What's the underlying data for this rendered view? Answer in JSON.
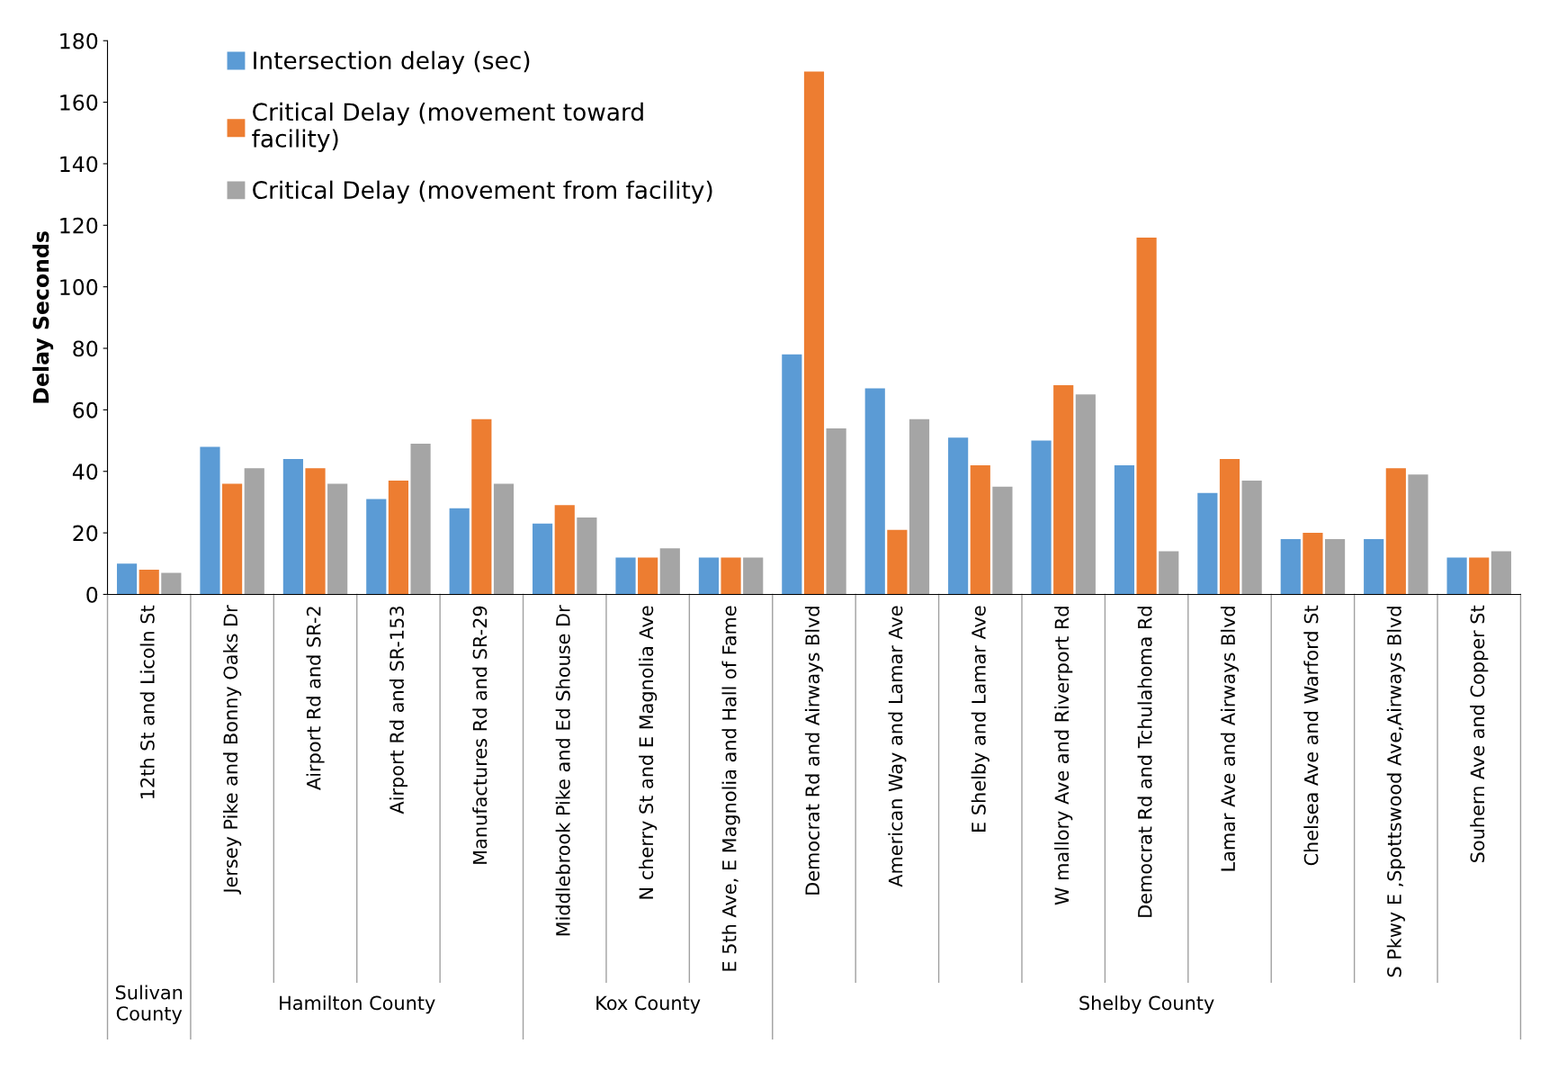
{
  "chart_data": {
    "type": "bar",
    "ylabel": "Delay Seconds",
    "categories": [
      "12th St and Licoln St",
      "Jersey Pike and Bonny Oaks Dr",
      "Airport Rd and SR-2",
      "Airport Rd and SR-153",
      "Manufactures Rd and SR-29",
      "Middlebrook Pike and Ed Shouse Dr",
      "N cherry St and E Magnolia Ave",
      "E 5th Ave, E Magnolia and Hall of Fame",
      "Democrat Rd and Airways Blvd",
      "American Way and Lamar Ave",
      "E Shelby and Lamar Ave",
      "W mallory Ave and Riverport Rd",
      "Democrat Rd and Tchulahoma Rd",
      "Lamar Ave and Airways Blvd",
      "Chelsea Ave and Warford St",
      "S Pkwy E ,Spottswood Ave,Airways Blvd",
      "Souhern Ave and Copper St"
    ],
    "series": [
      {
        "name": "Intersection delay (sec)",
        "color": "#5b9bd5",
        "values": [
          10,
          48,
          44,
          31,
          28,
          23,
          12,
          12,
          78,
          67,
          51,
          50,
          42,
          33,
          18,
          18,
          12
        ]
      },
      {
        "name": "Critical Delay (movement toward\nfacility)",
        "color": "#ed7d31",
        "values": [
          8,
          36,
          41,
          37,
          57,
          29,
          12,
          12,
          170,
          21,
          42,
          68,
          116,
          44,
          20,
          41,
          12
        ]
      },
      {
        "name": "Critical Delay (movement from facility)",
        "color": "#a5a5a5",
        "values": [
          7,
          41,
          36,
          49,
          36,
          25,
          15,
          12,
          54,
          57,
          35,
          65,
          14,
          37,
          18,
          39,
          14
        ]
      }
    ],
    "annotations": [
      "Sulivan\nCounty",
      "Hamilton County",
      "Kox County",
      "Shelby County"
    ],
    "ylim": [
      0,
      180
    ],
    "yticks": [
      0,
      20,
      40,
      60,
      80,
      100,
      120,
      140,
      160,
      180
    ],
    "grid": false,
    "legend": "top left"
  }
}
